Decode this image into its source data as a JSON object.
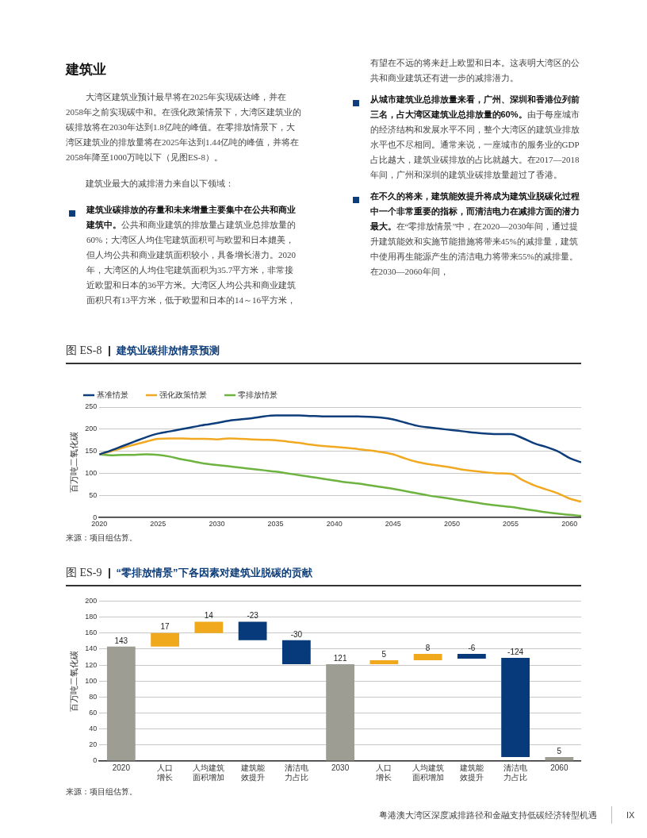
{
  "chart_data": [
    {
      "type": "line",
      "title": "图 ES-8",
      "subtitle": "建筑业碳排放情景预测",
      "ylabel": "百万吨二氧化碳",
      "annotations": [
        "建筑业",
        "大湾区建筑业预计最早将在2025年实现碳达峰，并在2058年之前实现碳中和。在强化政策情景下，大湾区建筑业的碳排放将在2030年达到1.8亿吨的峰值。在零排放情景下，大湾区建筑业的排放量将在2025年达到1.44亿吨的峰值，并将在2058年降至1000万吨以下（见图ES-8）。",
        "建筑业最大的减排潜力来自以下领域：",
        "建筑业碳排放的存量和未来增量主要集中在公共和商业建筑中。",
        "公共和商业建筑的排放量占建筑业总排放量的60%；大湾区人均住宅建筑面积可与欧盟和日本媲美，但人均公共和商业建筑面积较小，具备增长潜力。2020年，大湾区的人均住宅建筑面积为35.7平方米，非常接近欧盟和日本的36平方米。大湾区人均公共和商业建筑面积只有13平方米，低于欧盟和日本的14～16平方米，有望在不远的将来赶上欧盟和日本。这表明大湾区的公共和商业建筑还有进一步的减排潜力。",
        "从城市建筑业总排放量来看，广州、深圳和香港位列前三名，占大湾区建筑业总排放量的60%。",
        "由于每座城市的经济结构和发展水平不同，整个大湾区的建筑业排放水平也不尽相同。通常来说，一座城市的服务业的GDP占比越大，建筑业碳排放的占比就越大。在2017—2018年间，广州和深圳的建筑业碳排放量超过了香港。",
        "在不久的将来，建筑能效提升将成为建筑业脱碳化过程中一个非常重要的指标，而清洁电力在减排方面的潜力最大。",
        "在“零排放情景”中，在2020—2030年间，通过提升建筑能效和实施节能措施将带来45%的减排量，建筑中使用再生能源产生的清洁电力将带来55%的减排量。在2030—2060年间，",
        "来源：项目组估算。"
      ],
      "x": [
        2020,
        2021,
        2022,
        2023,
        2024,
        2025,
        2026,
        2027,
        2028,
        2029,
        2030,
        2031,
        2032,
        2033,
        2034,
        2035,
        2036,
        2037,
        2038,
        2039,
        2040,
        2041,
        2042,
        2043,
        2044,
        2045,
        2046,
        2047,
        2048,
        2049,
        2050,
        2051,
        2052,
        2053,
        2054,
        2055,
        2056,
        2057,
        2058,
        2059,
        2060,
        2061
      ],
      "xlim": [
        2020,
        2061
      ],
      "xticks": [
        2020,
        2025,
        2030,
        2035,
        2040,
        2045,
        2050,
        2055,
        2060
      ],
      "ylim": [
        0,
        250
      ],
      "yticks": [
        0,
        50,
        100,
        150,
        200,
        250
      ],
      "grid": "y",
      "legend": "top left",
      "series": [
        {
          "name": "基准情景",
          "color": "#0d3d7a",
          "values": [
            143,
            152,
            162,
            172,
            182,
            190,
            195,
            200,
            205,
            210,
            214,
            219,
            222,
            225,
            229,
            231,
            231,
            231,
            230,
            229,
            229,
            229,
            229,
            228,
            226,
            222,
            215,
            208,
            204,
            201,
            198,
            195,
            192,
            190,
            189,
            189,
            180,
            168,
            160,
            150,
            135,
            125
          ]
        },
        {
          "name": "强化政策情景",
          "color": "#f2a922",
          "values": [
            143,
            150,
            158,
            165,
            172,
            178,
            179,
            179,
            178,
            178,
            177,
            179,
            178,
            177,
            176,
            175,
            172,
            169,
            165,
            162,
            160,
            158,
            155,
            152,
            148,
            143,
            134,
            126,
            121,
            117,
            113,
            108,
            105,
            102,
            100,
            99,
            85,
            73,
            64,
            55,
            43,
            36
          ]
        },
        {
          "name": "零排放情景",
          "color": "#6db33f",
          "values": [
            143,
            141,
            142,
            142,
            143,
            142,
            138,
            132,
            127,
            122,
            119,
            116,
            113,
            110,
            107,
            104,
            100,
            96,
            92,
            88,
            84,
            80,
            77,
            73,
            69,
            65,
            60,
            55,
            50,
            46,
            42,
            38,
            34,
            30,
            27,
            24,
            20,
            16,
            12,
            9,
            6,
            4
          ]
        }
      ]
    },
    {
      "type": "bar",
      "title": "图 ES-9",
      "subtitle": "“零排放情景”下各因素对建筑业脱碳的贡献",
      "ylabel": "百万吨二氧化碳",
      "annotations": [
        "来源：项目组估算。",
        "粤港澳大湾区深度减排路径和金融支持低碳经济转型机遇",
        "IX"
      ],
      "categories": [
        "2020",
        "人口增长",
        "人均建筑面积增加",
        "建筑能效提升",
        "清洁电力占比",
        "2030",
        "人口增长",
        "人均建筑面积增加",
        "建筑能效提升",
        "清洁电力占比",
        "2060"
      ],
      "values": [
        143,
        17,
        14,
        -23,
        -30,
        121,
        5,
        8,
        -6,
        -124,
        5
      ],
      "base": [
        0,
        143,
        160,
        174,
        151,
        0,
        121,
        126,
        134,
        129,
        0
      ],
      "colors": [
        "#9d9d93",
        "#f0a81c",
        "#f0a81c",
        "#063a7a",
        "#063a7a",
        "#9d9d93",
        "#f0a81c",
        "#f0a81c",
        "#063a7a",
        "#063a7a",
        "#9d9d93"
      ],
      "ylim": [
        0,
        200
      ],
      "yticks": [
        0,
        20,
        40,
        60,
        80,
        100,
        120,
        140,
        160,
        180,
        200
      ],
      "grid": "y",
      "data_labels": true
    }
  ]
}
